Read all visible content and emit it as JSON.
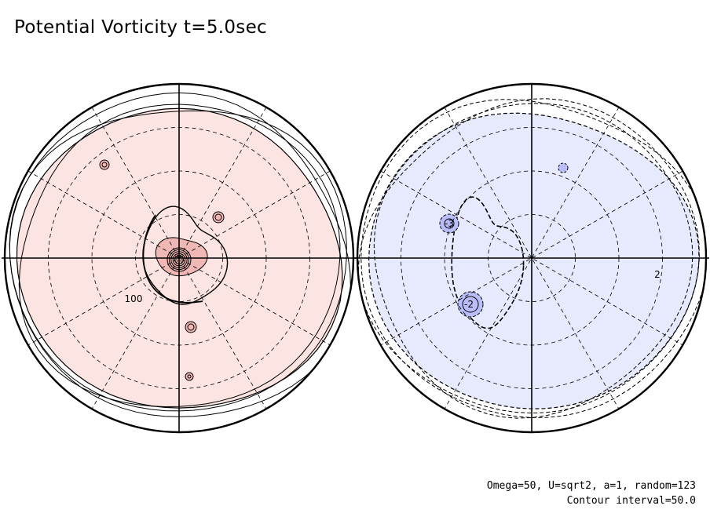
{
  "title": "Potential Vorticity t=5.0sec",
  "footer": {
    "params": "Omega=50, U=sqrt2, a=1, random=123",
    "interval": "Contour interval=50.0"
  },
  "colors": {
    "positive_fill": "#fbe4e2",
    "positive_strong": "#f0b8b4",
    "negative_fill": "#e7e9fc",
    "negative_strong": "#b9befa",
    "lines": "#000000"
  },
  "chart_data": {
    "type": "contour",
    "projection": "polar",
    "contour_interval": 50.0,
    "time_sec": 5.0,
    "panels": [
      {
        "hemisphere": "positive",
        "fill": "red",
        "labels": [
          {
            "text": "100"
          }
        ]
      },
      {
        "hemisphere": "negative",
        "fill": "blue",
        "labels": [
          {
            "text": "-3"
          },
          {
            "text": "-2"
          },
          {
            "text": "2"
          }
        ]
      }
    ]
  }
}
